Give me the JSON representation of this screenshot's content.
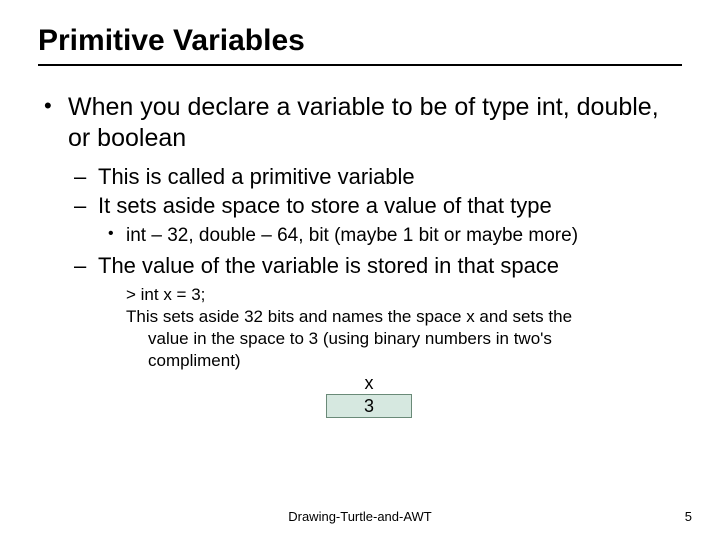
{
  "title": "Primitive Variables",
  "bullet1": "When you declare a variable to be of type int, double, or boolean",
  "sub1": "This is called a primitive variable",
  "sub2": "It sets aside space to store a value of that type",
  "subsub1": "int – 32, double – 64, bit (maybe 1 bit or maybe more)",
  "sub3": "The value of the variable is stored in that space",
  "code1": "> int x = 3;",
  "code2a": "This sets aside 32 bits and names the space x and sets the",
  "code2b": "value in the space to 3 (using binary numbers in two's",
  "code2c": "compliment)",
  "diagram": {
    "label": "x",
    "value": "3",
    "box_bg": "#d6e8e0",
    "box_border": "#6a8a78"
  },
  "footer": "Drawing-Turtle-and-AWT",
  "page": "5"
}
